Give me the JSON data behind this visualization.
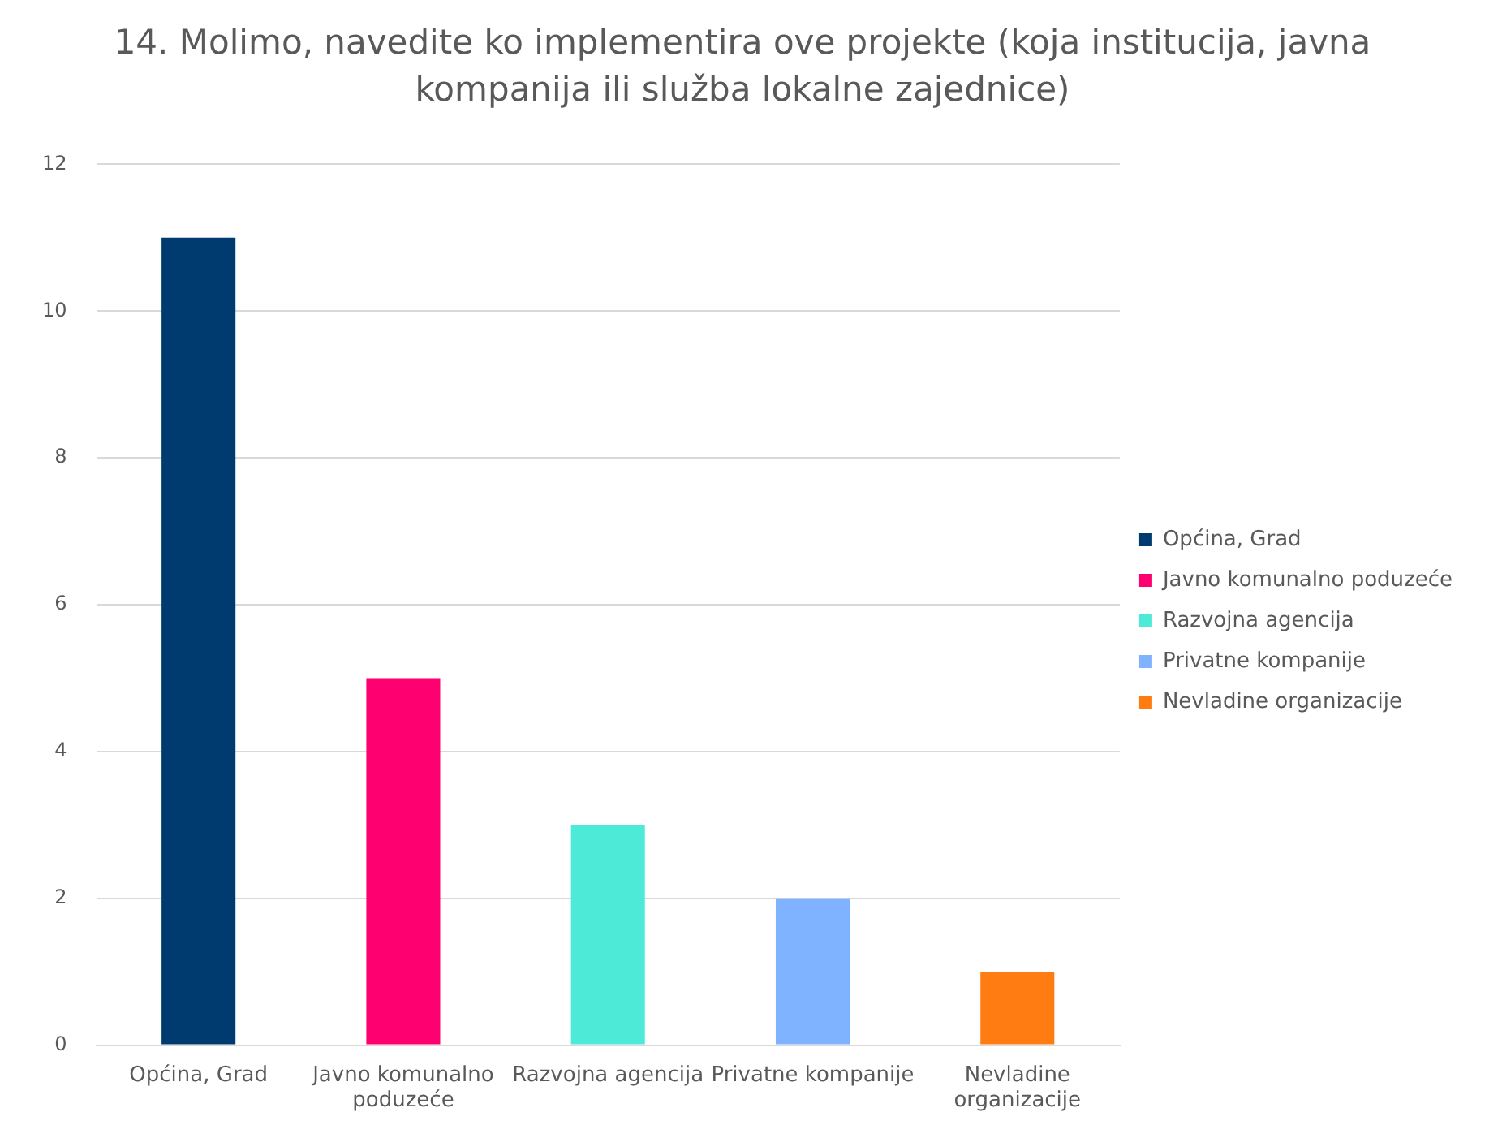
{
  "chart_data": {
    "type": "bar",
    "title": "14. Molimo, navedite ko implementira ove projekte (koja institucija, javna kompanija ili služba lokalne zajednice)",
    "categories": [
      "Općina, Grad",
      "Javno komunalno poduzeće",
      "Razvojna agencija",
      "Privatne kompanije",
      "Nevladine organizacije"
    ],
    "series": [
      {
        "name": "Općina, Grad",
        "color": "#003b6f",
        "values": [
          11,
          null,
          null,
          null,
          null
        ]
      },
      {
        "name": "Javno komunalno poduzeće",
        "color": "#ff0070",
        "values": [
          null,
          5,
          null,
          null,
          null
        ]
      },
      {
        "name": "Razvojna agencija",
        "color": "#4eead8",
        "values": [
          null,
          null,
          3,
          null,
          null
        ]
      },
      {
        "name": "Privatne kompanije",
        "color": "#80b3ff",
        "values": [
          null,
          null,
          null,
          2,
          null
        ]
      },
      {
        "name": "Nevladine organizacije",
        "color": "#ff7c12",
        "values": [
          null,
          null,
          null,
          null,
          1
        ]
      }
    ],
    "ylim": [
      0,
      12
    ],
    "yticks": [
      0,
      2,
      4,
      6,
      8,
      10,
      12
    ],
    "grid": "y",
    "legend": "right"
  }
}
